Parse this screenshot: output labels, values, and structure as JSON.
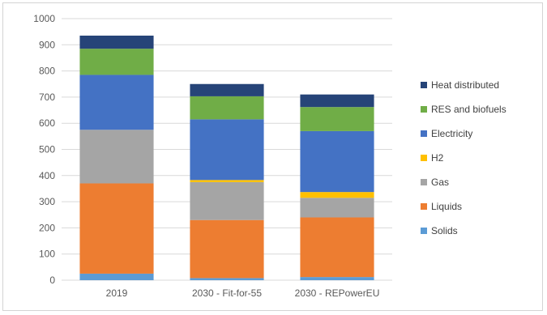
{
  "chart_data": {
    "type": "bar",
    "stacked": true,
    "categories": [
      "2019",
      "2030 - Fit-for-55",
      "2030 - REPowerEU"
    ],
    "series": [
      {
        "name": "Solids",
        "color": "#5b9bd5",
        "values": [
          25,
          8,
          12
        ]
      },
      {
        "name": "Liquids",
        "color": "#ed7d31",
        "values": [
          345,
          222,
          228
        ]
      },
      {
        "name": "Gas",
        "color": "#a5a5a5",
        "values": [
          205,
          145,
          75
        ]
      },
      {
        "name": "H2",
        "color": "#ffc000",
        "values": [
          0,
          8,
          22
        ]
      },
      {
        "name": "Electricity",
        "color": "#4472c4",
        "values": [
          210,
          232,
          233
        ]
      },
      {
        "name": "RES and biofuels",
        "color": "#70ad47",
        "values": [
          100,
          88,
          92
        ]
      },
      {
        "name": "Heat distributed",
        "color": "#264478",
        "values": [
          50,
          47,
          48
        ]
      }
    ],
    "ylim": [
      0,
      1000
    ],
    "yticks": [
      "0",
      "100",
      "200",
      "300",
      "400",
      "500",
      "600",
      "700",
      "800",
      "900",
      "1000"
    ],
    "grid": true,
    "legend_position": "right",
    "legend_order": [
      "Heat distributed",
      "RES and biofuels",
      "Electricity",
      "H2",
      "Gas",
      "Liquids",
      "Solids"
    ]
  }
}
